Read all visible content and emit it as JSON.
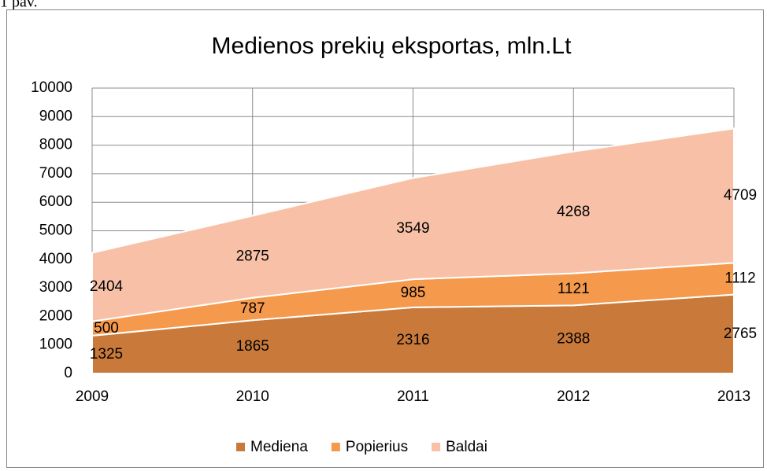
{
  "caption": "1 pav.",
  "chart_data": {
    "type": "stacked_area",
    "title": "Medienos prekių eksportas, mln.Lt",
    "x": [
      2009,
      2010,
      2011,
      2012,
      2013
    ],
    "xlim": [
      2009,
      2013
    ],
    "xticks": [
      2009,
      2010,
      2011,
      2012,
      2013
    ],
    "ylim": [
      0,
      10000
    ],
    "yticks": [
      0,
      1000,
      2000,
      3000,
      4000,
      5000,
      6000,
      7000,
      8000,
      9000,
      10000
    ],
    "grid": true,
    "legend": "bottom",
    "series": [
      {
        "name": "Mediena",
        "color": "#c97a3b",
        "values": [
          1325,
          1865,
          2316,
          2388,
          2765
        ]
      },
      {
        "name": "Popierius",
        "color": "#f59a4d",
        "values": [
          500,
          787,
          985,
          1121,
          1112
        ]
      },
      {
        "name": "Baldai",
        "color": "#f8c1a7",
        "values": [
          2404,
          2875,
          3549,
          4268,
          4709
        ]
      }
    ]
  }
}
